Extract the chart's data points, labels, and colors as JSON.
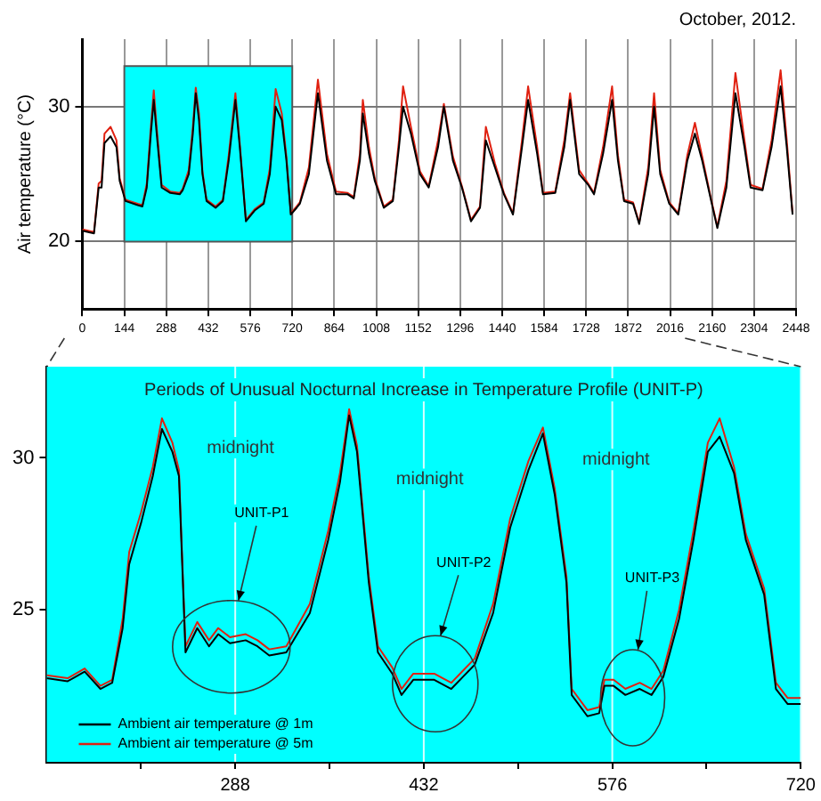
{
  "chart_data": [
    {
      "type": "line",
      "title": "October, 2012.",
      "ylabel": "Air temperature (°C)",
      "xlim": [
        0,
        2448
      ],
      "xticks": [
        0,
        144,
        288,
        432,
        576,
        720,
        864,
        1008,
        1152,
        1296,
        1440,
        1584,
        1728,
        1872,
        2016,
        2160,
        2304,
        2448
      ],
      "ylim": [
        15,
        35
      ],
      "yticks": [
        20,
        30
      ],
      "grid": true,
      "legend": false,
      "bands": [
        {
          "axis": "x",
          "from": 144,
          "to": 720,
          "color": "#00ffff"
        }
      ],
      "x": [
        0,
        20,
        40,
        56,
        66,
        76,
        97,
        117,
        128,
        148,
        190,
        206,
        221,
        235,
        245,
        255,
        272,
        302,
        334,
        344,
        365,
        379,
        389,
        400,
        412,
        426,
        457,
        482,
        502,
        525,
        540,
        561,
        591,
        622,
        643,
        663,
        684,
        700,
        715,
        735,
        746,
        777,
        808,
        839,
        870,
        910,
        931,
        952,
        962,
        983,
        1003,
        1034,
        1065,
        1086,
        1100,
        1127,
        1158,
        1188,
        1220,
        1240,
        1271,
        1302,
        1333,
        1364,
        1384,
        1415,
        1446,
        1477,
        1508,
        1529,
        1560,
        1580,
        1622,
        1653,
        1673,
        1704,
        1735,
        1755,
        1786,
        1817,
        1837,
        1858,
        1889,
        1910,
        1941,
        1961,
        1982,
        2013,
        2044,
        2075,
        2101,
        2126,
        2157,
        2178,
        2209,
        2240,
        2271,
        2292,
        2333,
        2364,
        2395,
        2416,
        2436
      ],
      "series": [
        {
          "color": "#000000",
          "values": [
            20.8,
            20.7,
            20.6,
            24,
            24,
            27.3,
            27.8,
            27,
            24.5,
            23,
            22.7,
            22.6,
            24,
            28,
            30.5,
            28,
            24,
            23.6,
            23.5,
            23.8,
            25,
            28,
            31,
            29,
            25,
            23,
            22.5,
            23,
            26,
            30.5,
            27,
            21.5,
            22.3,
            22.8,
            25,
            30,
            29,
            26,
            22,
            22.5,
            22.8,
            25,
            31,
            26,
            23.5,
            23.5,
            23.2,
            26,
            29.5,
            26.5,
            24.5,
            22.5,
            23,
            27,
            30,
            28,
            25,
            24,
            27,
            30,
            26,
            24,
            21.5,
            22.5,
            27.5,
            25.5,
            23.5,
            22,
            27,
            30.5,
            26.5,
            23.5,
            23.6,
            27,
            30.5,
            25,
            24.2,
            23.5,
            26.5,
            30.5,
            26,
            23,
            22.8,
            21.3,
            25,
            30,
            25,
            22.8,
            22,
            26,
            28,
            26,
            23,
            21,
            24,
            31,
            27,
            24,
            23.8,
            27,
            31.5,
            27,
            22
          ]
        },
        {
          "color": "#e02010",
          "values": [
            20.9,
            20.8,
            20.7,
            24.3,
            24.5,
            28,
            28.5,
            27.5,
            24.7,
            23.1,
            22.8,
            22.7,
            24.3,
            28.5,
            31.2,
            28.5,
            24.2,
            23.7,
            23.6,
            23.9,
            25.3,
            28.5,
            31.4,
            29.5,
            25.2,
            23.1,
            22.6,
            23.1,
            26.4,
            31,
            27.3,
            21.6,
            22.4,
            22.9,
            25.4,
            31.3,
            29.5,
            26.3,
            22.1,
            22.6,
            22.9,
            25.5,
            32,
            26.5,
            23.7,
            23.6,
            23.3,
            26.5,
            30.5,
            27,
            24.7,
            22.6,
            23.1,
            27.5,
            31.5,
            28.5,
            25.2,
            24.1,
            27.5,
            30.2,
            26.3,
            24.1,
            21.6,
            22.6,
            28.5,
            25.8,
            23.6,
            22.1,
            27.5,
            31.5,
            27,
            23.6,
            23.7,
            27.5,
            31,
            25.3,
            24.3,
            23.6,
            27,
            31.5,
            26.4,
            23.1,
            22.9,
            21.4,
            25.5,
            31,
            25.3,
            22.9,
            22.1,
            26.4,
            28.8,
            26.3,
            23.1,
            21.1,
            24.5,
            32.5,
            27.5,
            24.2,
            23.9,
            27.5,
            32.7,
            27.5,
            22.1
          ]
        }
      ]
    },
    {
      "type": "line",
      "title": "Periods of Unusual Nocturnal Increase in Temperature Profile (UNIT-P)",
      "xlim": [
        144,
        720
      ],
      "xticks": [
        {
          "value": 216,
          "label": null
        },
        288,
        {
          "value": 360,
          "label": null
        },
        432,
        {
          "value": 504,
          "label": null
        },
        576,
        {
          "value": 648,
          "label": null
        },
        720
      ],
      "ylim": [
        20,
        33
      ],
      "yticks": [
        25,
        30
      ],
      "grid": "x",
      "legend": "bottom left",
      "annotations": [
        "midnight",
        "midnight",
        "midnight",
        "UNIT-P1",
        "UNIT-P2",
        "UNIT-P3"
      ],
      "x": [
        144,
        160,
        173,
        185,
        194,
        202,
        207,
        216,
        225,
        232,
        240,
        245,
        250,
        259,
        268,
        275,
        284,
        296,
        305,
        314,
        327,
        345,
        359,
        368,
        375,
        381,
        390,
        397,
        408,
        415,
        424,
        440,
        453,
        462,
        471,
        485,
        498,
        512,
        523,
        532,
        541,
        545,
        557,
        566,
        570,
        577,
        586,
        597,
        606,
        615,
        627,
        638,
        649,
        658,
        669,
        678,
        692,
        701,
        710,
        720
      ],
      "series": [
        {
          "name": "Ambient air temperature @ 1m",
          "color": "#000000",
          "values": [
            22.75,
            22.65,
            22.97,
            22.4,
            22.6,
            24.4,
            26.5,
            27.85,
            29.4,
            30.95,
            30.2,
            29.4,
            23.6,
            24.4,
            23.8,
            24.2,
            23.9,
            24.0,
            23.8,
            23.5,
            23.6,
            24.9,
            27.3,
            29.2,
            31.4,
            30.2,
            25.9,
            23.6,
            22.9,
            22.2,
            22.7,
            22.7,
            22.4,
            22.8,
            23.2,
            24.9,
            27.7,
            29.6,
            30.8,
            28.8,
            25.9,
            22.2,
            21.5,
            21.6,
            22.5,
            22.5,
            22.2,
            22.4,
            22.2,
            22.8,
            24.7,
            27.3,
            30.2,
            30.7,
            29.5,
            27.3,
            25.5,
            22.4,
            21.9,
            21.9
          ]
        },
        {
          "name": "Ambient air temperature @ 5m",
          "color": "#e02010",
          "values": [
            22.85,
            22.75,
            23.07,
            22.5,
            22.7,
            24.7,
            26.9,
            28.2,
            29.7,
            31.3,
            30.5,
            29.6,
            23.8,
            24.6,
            24.0,
            24.4,
            24.1,
            24.2,
            24.0,
            23.7,
            23.8,
            25.2,
            27.6,
            29.5,
            31.6,
            30.4,
            26.1,
            23.8,
            23.1,
            22.4,
            22.9,
            22.9,
            22.6,
            23.0,
            23.4,
            25.2,
            28.0,
            29.9,
            31.0,
            29.0,
            26.1,
            22.4,
            21.7,
            21.8,
            22.7,
            22.7,
            22.4,
            22.6,
            22.4,
            23.0,
            25.0,
            27.6,
            30.5,
            31.3,
            29.7,
            27.5,
            25.7,
            22.6,
            22.1,
            22.1
          ]
        }
      ]
    }
  ]
}
